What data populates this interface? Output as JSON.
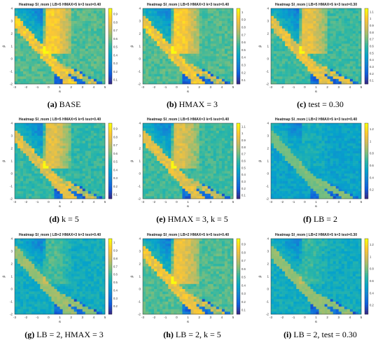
{
  "chart_data": [
    {
      "type": "heatmap",
      "label": "(a)",
      "caption": "BASE",
      "title": "Heatmap SI_mom | LB=5 HMAX=5 k=3 test=0.40",
      "xlabel": "α",
      "ylabel": "β",
      "x_ticks": [
        "-3",
        "-2",
        "-1",
        "0",
        "1",
        "2",
        "3",
        "4",
        "5"
      ],
      "y_ticks": [
        "-2",
        "-1",
        "0",
        "1",
        "2",
        "3",
        "4"
      ],
      "colorbar_ticks": [
        "0.1",
        "0.2",
        "0.3",
        "0.4",
        "0.5",
        "0.6",
        "0.7",
        "0.8",
        "0.9"
      ],
      "colorbar_range": [
        0.05,
        0.97
      ]
    },
    {
      "type": "heatmap",
      "label": "(b)",
      "caption": "HMAX = 3",
      "title": "Heatmap SI_mom | LB=5 HMAX=3 k=3 test=0.40",
      "xlabel": "α",
      "ylabel": "β",
      "x_ticks": [
        "-3",
        "-2",
        "-1",
        "0",
        "1",
        "2",
        "3",
        "4",
        "5"
      ],
      "y_ticks": [
        "-2",
        "-1",
        "0",
        "1",
        "2",
        "3",
        "4"
      ],
      "colorbar_ticks": [
        "0.1",
        "0.2",
        "0.3",
        "0.4",
        "0.5",
        "0.6",
        "0.7",
        "0.8",
        "0.9",
        "1"
      ],
      "colorbar_range": [
        0.05,
        1.05
      ]
    },
    {
      "type": "heatmap",
      "label": "(c)",
      "caption": "test = 0.30",
      "title": "Heatmap SI_mom | LB=5 HMAX=5 k=3 test=0.30",
      "xlabel": "α",
      "ylabel": "β",
      "x_ticks": [
        "-3",
        "-2",
        "-1",
        "0",
        "1",
        "2",
        "3",
        "4",
        "5"
      ],
      "y_ticks": [
        "-2",
        "-1",
        "0",
        "1",
        "2",
        "3",
        "4"
      ],
      "colorbar_ticks": [
        "0.1",
        "0.2",
        "0.3",
        "0.4",
        "0.5",
        "0.6",
        "0.7",
        "0.8",
        "0.9",
        "1",
        "1.1"
      ],
      "colorbar_range": [
        0.05,
        1.15
      ]
    },
    {
      "type": "heatmap",
      "label": "(d)",
      "caption": "k = 5",
      "title": "Heatmap SI_mom | LB=5 HMAX=5 k=5 test=0.40",
      "xlabel": "α",
      "ylabel": "β",
      "x_ticks": [
        "-3",
        "-2",
        "-1",
        "0",
        "1",
        "2",
        "3",
        "4",
        "5"
      ],
      "y_ticks": [
        "-2",
        "-1",
        "0",
        "1",
        "2",
        "3",
        "4"
      ],
      "colorbar_ticks": [
        "0.1",
        "0.2",
        "0.3",
        "0.4",
        "0.5",
        "0.6",
        "0.7",
        "0.8",
        "0.9"
      ],
      "colorbar_range": [
        0.05,
        0.97
      ]
    },
    {
      "type": "heatmap",
      "label": "(e)",
      "caption": "HMAX = 3, k = 5",
      "title": "Heatmap SI_mom | LB=5 HMAX=3 k=5 test=0.40",
      "xlabel": "α",
      "ylabel": "β",
      "x_ticks": [
        "-3",
        "-2",
        "-1",
        "0",
        "1",
        "2",
        "3",
        "4",
        "5"
      ],
      "y_ticks": [
        "-2",
        "-1",
        "0",
        "1",
        "2",
        "3",
        "4"
      ],
      "colorbar_ticks": [
        "0.1",
        "0.2",
        "0.3",
        "0.4",
        "0.5",
        "0.6",
        "0.7",
        "0.8",
        "0.9",
        "1",
        "1.1"
      ],
      "colorbar_range": [
        0.05,
        1.15
      ]
    },
    {
      "type": "heatmap",
      "label": "(f)",
      "caption": "LB = 2",
      "title": "Heatmap SI_mom | LB=2 HMAX=5 k=3 test=0.40",
      "xlabel": "α",
      "ylabel": "β",
      "x_ticks": [
        "-3",
        "-2",
        "-1",
        "0",
        "1",
        "2",
        "3",
        "4",
        "5"
      ],
      "y_ticks": [
        "-2",
        "-1",
        "0",
        "1",
        "2",
        "3",
        "4"
      ],
      "colorbar_ticks": [
        "0.2",
        "0.4",
        "0.6",
        "0.8",
        "1",
        "1.2"
      ],
      "colorbar_range": [
        0.05,
        1.3
      ]
    },
    {
      "type": "heatmap",
      "label": "(g)",
      "caption": "LB = 2, HMAX = 3",
      "title": "Heatmap SI_mom | LB=2 HMAX=3 k=3 test=0.40",
      "xlabel": "α",
      "ylabel": "β",
      "x_ticks": [
        "-3",
        "-2",
        "-1",
        "0",
        "1",
        "2",
        "3",
        "4",
        "5"
      ],
      "y_ticks": [
        "-2",
        "-1",
        "0",
        "1",
        "2",
        "3",
        "4"
      ],
      "colorbar_ticks": [
        "0.2",
        "0.3",
        "0.4",
        "0.5",
        "0.6",
        "0.7",
        "0.8",
        "0.9",
        "1"
      ],
      "colorbar_range": [
        0.1,
        1.05
      ]
    },
    {
      "type": "heatmap",
      "label": "(h)",
      "caption": "LB = 2, k = 5",
      "title": "Heatmap SI_mom | LB=2 HMAX=5 k=5 test=0.40",
      "xlabel": "α",
      "ylabel": "β",
      "x_ticks": [
        "-3",
        "-2",
        "-1",
        "0",
        "1",
        "2",
        "3",
        "4",
        "5"
      ],
      "y_ticks": [
        "-2",
        "-1",
        "0",
        "1",
        "2",
        "3",
        "4"
      ],
      "colorbar_ticks": [
        "0.1",
        "0.2",
        "0.3",
        "0.4",
        "0.5",
        "0.6",
        "0.7",
        "0.8",
        "0.9"
      ],
      "colorbar_range": [
        0.05,
        0.97
      ]
    },
    {
      "type": "heatmap",
      "label": "(i)",
      "caption": "LB = 2, test = 0.30",
      "title": "Heatmap SI_mom | LB=2 HMAX=5 k=3 test=0.30",
      "xlabel": "α",
      "ylabel": "β",
      "x_ticks": [
        "-3",
        "-2",
        "-1",
        "0",
        "1",
        "2",
        "3",
        "4",
        "5"
      ],
      "y_ticks": [
        "-2",
        "-1",
        "0",
        "1",
        "2",
        "3",
        "4"
      ],
      "colorbar_ticks": [
        "0.2",
        "0.4",
        "0.6",
        "0.8",
        "1",
        "1.2"
      ],
      "colorbar_range": [
        0.05,
        1.3
      ]
    }
  ],
  "colormap": [
    "#352a87",
    "#0f5cdd",
    "#1481d6",
    "#06a4ca",
    "#2eb7a4",
    "#87bf77",
    "#d1bb59",
    "#fec832",
    "#f9fb0e"
  ]
}
